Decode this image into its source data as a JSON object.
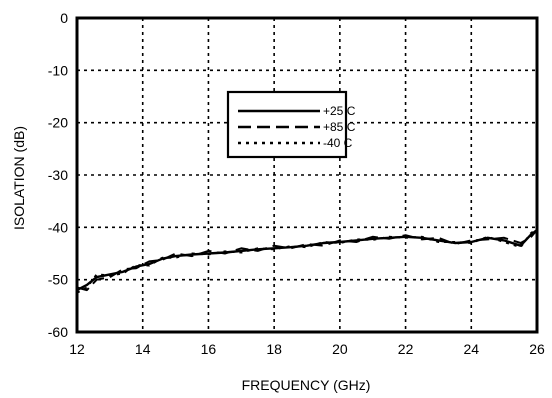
{
  "chart_data": {
    "type": "line",
    "title": "",
    "xlabel": "FREQUENCY (GHz)",
    "ylabel": "ISOLATION (dB)",
    "xlim": [
      12,
      26
    ],
    "ylim": [
      -60,
      0
    ],
    "xticks": [
      "12",
      "14",
      "16",
      "18",
      "20",
      "22",
      "24",
      "26"
    ],
    "yticks": [
      "0",
      "-10",
      "-20",
      "-30",
      "-40",
      "-50",
      "-60"
    ],
    "grid": true,
    "legend_position": "upper-center",
    "series": [
      {
        "name": "+25 C",
        "dash": "solid",
        "color": "#000000",
        "x": [
          12.0,
          12.3,
          12.6,
          13.0,
          13.4,
          13.8,
          14.2,
          14.6,
          15.0,
          15.5,
          16.0,
          16.5,
          17.0,
          17.5,
          18.0,
          18.5,
          19.0,
          19.5,
          20.0,
          20.5,
          21.0,
          21.5,
          22.0,
          22.5,
          23.0,
          23.5,
          24.0,
          24.5,
          25.0,
          25.5,
          25.8,
          26.0
        ],
        "y": [
          -52.0,
          -51.0,
          -49.5,
          -49.0,
          -48.5,
          -47.5,
          -47.0,
          -46.0,
          -45.5,
          -45.2,
          -45.0,
          -44.8,
          -44.5,
          -44.2,
          -44.0,
          -43.8,
          -43.5,
          -43.0,
          -42.8,
          -42.5,
          -42.2,
          -42.0,
          -41.8,
          -42.0,
          -42.5,
          -43.0,
          -42.8,
          -42.0,
          -42.5,
          -43.5,
          -41.5,
          -40.5
        ]
      },
      {
        "name": "+85 C",
        "dash": "long-dash",
        "color": "#000000",
        "x": [
          12.0,
          12.3,
          12.6,
          13.0,
          13.4,
          13.8,
          14.2,
          14.6,
          15.0,
          15.5,
          16.0,
          16.5,
          17.0,
          17.5,
          18.0,
          18.5,
          19.0,
          19.5,
          20.0,
          20.5,
          21.0,
          21.5,
          22.0,
          22.5,
          23.0,
          23.5,
          24.0,
          24.5,
          25.0,
          25.5,
          25.8,
          26.0
        ],
        "y": [
          -51.5,
          -52.0,
          -50.0,
          -49.5,
          -48.0,
          -47.8,
          -46.5,
          -46.2,
          -45.0,
          -45.5,
          -44.5,
          -45.0,
          -44.0,
          -44.5,
          -43.5,
          -44.0,
          -43.2,
          -43.5,
          -42.5,
          -42.8,
          -41.8,
          -42.2,
          -41.5,
          -42.3,
          -42.0,
          -43.2,
          -42.5,
          -42.3,
          -42.0,
          -43.0,
          -42.0,
          -40.5
        ]
      },
      {
        "name": "-40 C",
        "dash": "short-dash",
        "color": "#000000",
        "x": [
          12.0,
          12.3,
          12.6,
          13.0,
          13.4,
          13.8,
          14.2,
          14.6,
          15.0,
          15.5,
          16.0,
          16.5,
          17.0,
          17.5,
          18.0,
          18.5,
          19.0,
          19.5,
          20.0,
          20.5,
          21.0,
          21.5,
          22.0,
          22.5,
          23.0,
          23.5,
          24.0,
          24.5,
          25.0,
          25.5,
          25.8,
          26.0
        ],
        "y": [
          -52.5,
          -51.5,
          -49.0,
          -49.2,
          -48.8,
          -47.2,
          -47.3,
          -45.8,
          -45.8,
          -45.0,
          -45.2,
          -44.6,
          -44.8,
          -44.0,
          -44.2,
          -43.6,
          -43.8,
          -42.8,
          -43.0,
          -42.3,
          -42.4,
          -41.8,
          -42.0,
          -41.8,
          -42.8,
          -42.8,
          -43.0,
          -41.8,
          -42.8,
          -43.8,
          -41.2,
          -40.2
        ]
      }
    ]
  }
}
